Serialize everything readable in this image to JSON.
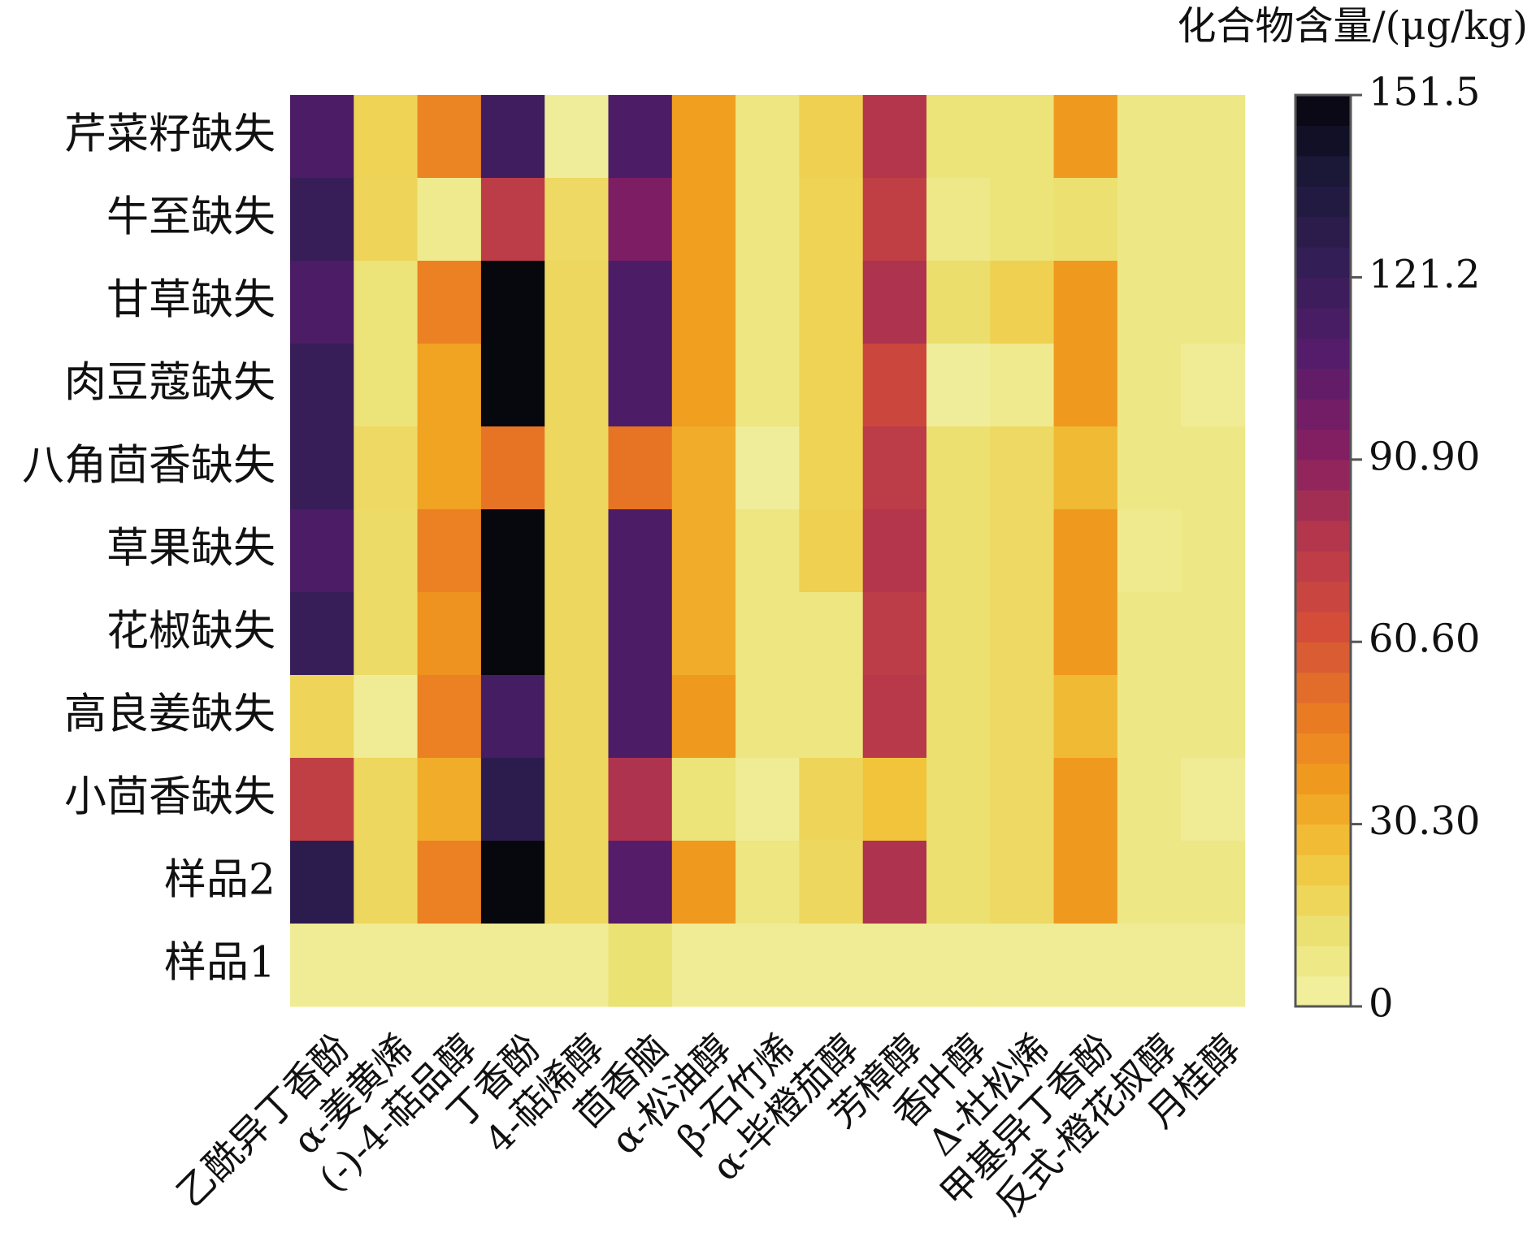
{
  "chart_data": {
    "type": "heatmap",
    "colorbar_title": "化合物含量/(μg/kg)",
    "colorbar_range": [
      0,
      151.5
    ],
    "colorbar_ticks": [
      "0",
      "30.30",
      "60.60",
      "90.90",
      "121.2",
      "151.5"
    ],
    "colorbar_tick_values": [
      0,
      30.3,
      60.6,
      90.9,
      121.2,
      151.5
    ],
    "colormap": "inferno (reversed, light yellow = 0, black = max)",
    "rows": [
      "芹菜籽缺失",
      "牛至缺失",
      "甘草缺失",
      "肉豆蔻缺失",
      "八角茴香缺失",
      "草果缺失",
      "花椒缺失",
      "高良姜缺失",
      "小茴香缺失",
      "样品2",
      "样品1"
    ],
    "columns": [
      "乙酰异丁香酚",
      "α-姜黄烯",
      "(-)-4-萜品醇",
      "丁香酚",
      "4-萜烯醇",
      "茴香脑",
      "α-松油醇",
      "β-石竹烯",
      "α-毕橙茄醇",
      "芳樟醇",
      "香叶醇",
      "Δ-杜松烯",
      "甲基异丁香酚",
      "反式-橙花叔醇",
      "月桂醇"
    ],
    "values": [
      [
        112,
        19,
        45,
        118,
        3,
        112,
        36,
        9,
        20,
        78,
        11,
        11,
        38,
        8,
        8
      ],
      [
        122,
        18,
        6,
        74,
        16,
        95,
        36,
        9,
        19,
        72,
        7,
        11,
        13,
        8,
        8
      ],
      [
        112,
        11,
        46,
        151,
        17,
        112,
        36,
        9,
        19,
        80,
        14,
        20,
        38,
        8,
        8
      ],
      [
        122,
        11,
        35,
        151,
        17,
        112,
        36,
        9,
        19,
        67,
        3,
        6,
        38,
        8,
        4
      ],
      [
        122,
        16,
        35,
        50,
        17,
        50,
        32,
        3,
        19,
        74,
        13,
        16,
        28,
        8,
        8
      ],
      [
        112,
        15,
        46,
        151,
        17,
        112,
        32,
        9,
        20,
        78,
        13,
        16,
        38,
        6,
        8
      ],
      [
        122,
        15,
        40,
        151,
        17,
        112,
        32,
        9,
        9,
        74,
        13,
        16,
        38,
        8,
        8
      ],
      [
        18,
        4,
        46,
        115,
        17,
        112,
        38,
        9,
        9,
        76,
        13,
        16,
        28,
        8,
        8
      ],
      [
        72,
        17,
        32,
        128,
        17,
        80,
        11,
        4,
        18,
        25,
        13,
        16,
        38,
        8,
        4
      ],
      [
        128,
        17,
        46,
        151,
        17,
        108,
        38,
        9,
        17,
        80,
        13,
        16,
        38,
        8,
        8
      ],
      [
        4,
        4,
        4,
        4,
        4,
        12,
        4,
        4,
        4,
        4,
        4,
        4,
        4,
        4,
        4
      ]
    ]
  }
}
